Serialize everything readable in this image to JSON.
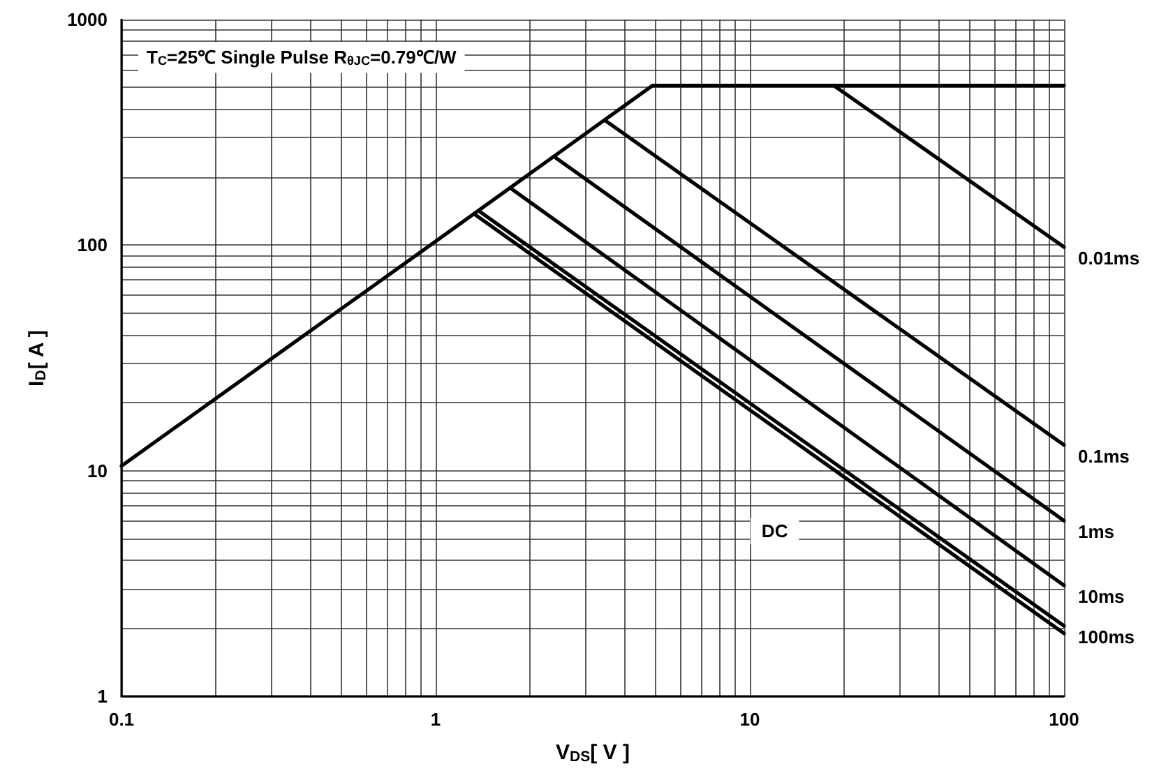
{
  "chart_data": {
    "type": "line",
    "xlabel": "V$_{DS}$[ V ]",
    "ylabel": "I$_{D}$[ A ]",
    "log": "xy",
    "grid": true,
    "marker": "none",
    "line_style": "solid",
    "xlim": [
      0.1,
      100
    ],
    "xticks": [
      0.1,
      1,
      10,
      100
    ],
    "ylim": [
      1,
      1000
    ],
    "yticks": [
      1,
      10,
      100,
      1000
    ],
    "series": [
      {
        "color": "#000000",
        "x": [
          0.1,
          1,
          4.9,
          100
        ],
        "values": [
          10.5,
          104,
          510,
          510
        ]
      },
      {
        "name": "0.01ms",
        "color": "#000000",
        "x": [
          18.5,
          100
        ],
        "values": [
          510,
          98
        ]
      },
      {
        "name": "0.1ms",
        "color": "#000000",
        "x": [
          3.45,
          100
        ],
        "values": [
          358,
          13
        ]
      },
      {
        "name": "1ms",
        "color": "#000000",
        "x": [
          2.41,
          100
        ],
        "values": [
          244,
          6
        ]
      },
      {
        "name": "10ms",
        "color": "#000000",
        "x": [
          1.74,
          100
        ],
        "values": [
          178,
          3.1
        ]
      },
      {
        "name": "100ms",
        "color": "#000000",
        "x": [
          1.37,
          100
        ],
        "values": [
          142,
          2.05
        ]
      },
      {
        "color": "#000000",
        "x": [
          1.33,
          100
        ],
        "values": [
          137,
          1.9
        ]
      }
    ],
    "annotations": [
      "T$_{C}$=25℃ Single Pulse R$_{θJC}$=0.79℃/W",
      {
        "text": "DC",
        "x": 12,
        "y": 5.4
      }
    ]
  }
}
